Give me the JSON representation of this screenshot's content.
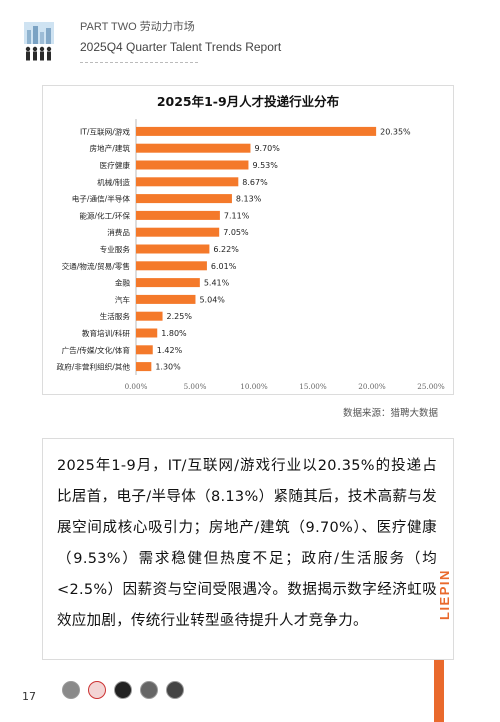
{
  "header": {
    "section": "PART TWO 劳动力市场",
    "report": "2025Q4 Quarter Talent Trends Report"
  },
  "chart_data": {
    "type": "bar",
    "orientation": "horizontal",
    "title": "2025年1-9月人才投递行业分布",
    "categories": [
      "IT/互联网/游戏",
      "房地产/建筑",
      "医疗健康",
      "机械/制造",
      "电子/通信/半导体",
      "能源/化工/环保",
      "消费品",
      "专业服务",
      "交通/物流/贸易/零售",
      "金融",
      "汽车",
      "生活服务",
      "教育培训/科研",
      "广告/传媒/文化/体育",
      "政府/非营利组织/其他"
    ],
    "values": [
      20.35,
      9.7,
      9.53,
      8.67,
      8.13,
      7.11,
      7.05,
      6.22,
      6.01,
      5.41,
      5.04,
      2.25,
      1.8,
      1.42,
      1.3
    ],
    "value_labels": [
      "20.35%",
      "9.70%",
      "9.53%",
      "8.67%",
      "8.13%",
      "7.11%",
      "7.05%",
      "6.22%",
      "6.01%",
      "5.41%",
      "5.04%",
      "2.25%",
      "1.80%",
      "1.42%",
      "1.30%"
    ],
    "xlim": [
      0,
      25
    ],
    "xticks": [
      "0.00%",
      "5.00%",
      "10.00%",
      "15.00%",
      "20.00%",
      "25.00%"
    ],
    "bar_color": "#f4792a",
    "grid": false,
    "legend": "none"
  },
  "source": "数据来源：猎聘大数据",
  "body_text": "2025年1-9月，IT/互联网/游戏行业以20.35%的投递占比居首，电子/半导体（8.13%）紧随其后，技术高薪与发展空间成核心吸引力；房地产/建筑（9.70%）、医疗健康（9.53%）需求稳健但热度不足；政府/生活服务（均<2.5%）因薪资与空间受限遇冷。数据揭示数字经济虹吸效应加剧，传统行业转型亟待提升人才竞争力。",
  "page_number": "17",
  "brand": "LIEPIN",
  "colors": {
    "accent": "#e9692c"
  },
  "footer_icons": [
    "avatar-icon-1",
    "avatar-icon-2",
    "avatar-icon-3",
    "avatar-icon-4",
    "avatar-icon-5"
  ]
}
